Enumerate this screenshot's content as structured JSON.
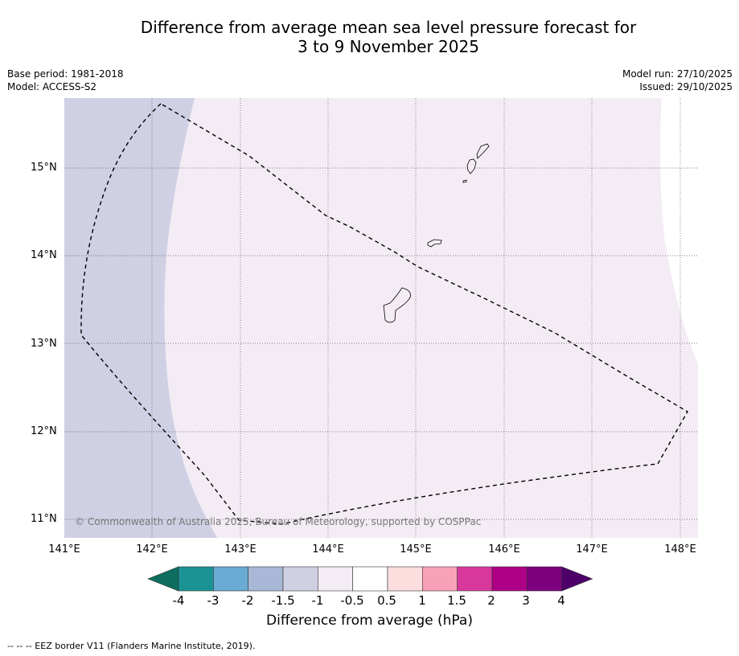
{
  "title": {
    "line1": "Difference from average mean sea level pressure forecast for",
    "line2": "3 to 9 November 2025"
  },
  "meta": {
    "base_period": "Base period: 1981-2018",
    "model": "Model: ACCESS-S2",
    "model_run": "Model run: 27/10/2025",
    "issued": "Issued: 29/10/2025"
  },
  "map": {
    "lat_labels": [
      "15°N",
      "14°N",
      "13°N",
      "12°N",
      "11°N"
    ],
    "lon_labels": [
      "141°E",
      "142°E",
      "143°E",
      "144°E",
      "145°E",
      "146°E",
      "147°E",
      "148°E"
    ],
    "copyright": "© Commonwealth of Australia 2025, Bureau of Meteorology, supported by COSPPac",
    "colors": {
      "band_neg_1_5_to_neg_1": "#cfd0e4",
      "band_neg_1_to_neg_0_5": "#f4ecf5",
      "band_neutral": "#ffffff",
      "coastline": "#000000",
      "eez_line": "#000000"
    }
  },
  "colorbar": {
    "tick_labels": [
      "-4",
      "-3",
      "-2",
      "-1.5",
      "-1",
      "-0.5",
      "0.5",
      "1",
      "1.5",
      "2",
      "3",
      "4"
    ],
    "colors": [
      "#0e6d5f",
      "#1b9395",
      "#69abd2",
      "#a8b8d6",
      "#cfd0e4",
      "#f4ecf5",
      "#ffffff",
      "#fddede",
      "#f9a1b9",
      "#d8379c",
      "#ad0086",
      "#7c007e",
      "#4d0069"
    ],
    "title": "Difference from average (hPa)"
  },
  "footer": "--  --  -- EEZ border V11 (Flanders Marine Institute, 2019)."
}
